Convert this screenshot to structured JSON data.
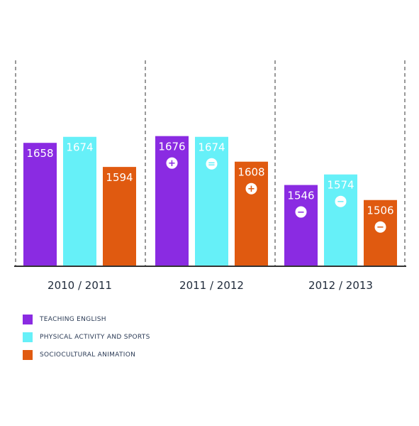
{
  "colors": {
    "teaching": "#8a2be2",
    "physical": "#66f0f8",
    "socio": "#e05a10",
    "axis": "#333333",
    "text": "#1f2a3a"
  },
  "chart_data": {
    "type": "bar",
    "categories": [
      "2010 / 2011",
      "2011 / 2012",
      "2012 / 2013"
    ],
    "series": [
      {
        "name": "TEACHING ENGLISH",
        "values": [
          1658,
          1676,
          1546
        ],
        "markers": [
          "",
          "+",
          "-"
        ]
      },
      {
        "name": "PHYSICAL ACTIVITY AND SPORTS",
        "values": [
          1674,
          1674,
          1574
        ],
        "markers": [
          "",
          "=",
          "-"
        ]
      },
      {
        "name": "SOCIOCULTURAL ANIMATION",
        "values": [
          1594,
          1608,
          1506
        ],
        "markers": [
          "",
          "+",
          "-"
        ]
      }
    ],
    "ylim": [
      1330,
      2000
    ],
    "grid": false,
    "legend": "bottom-left"
  }
}
